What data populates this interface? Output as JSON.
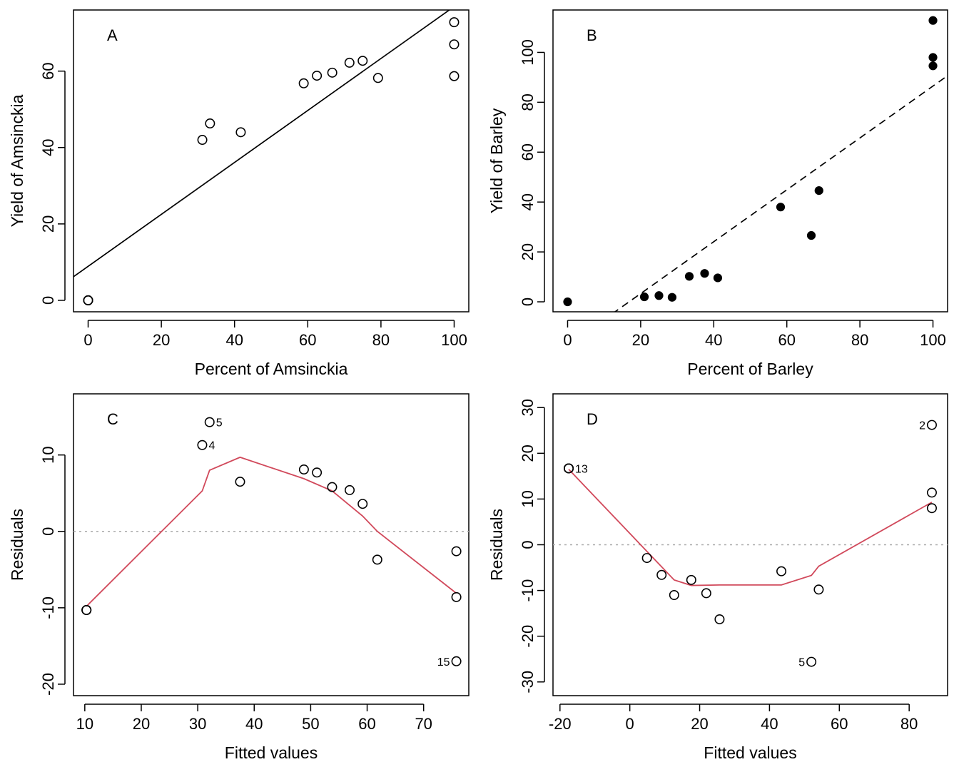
{
  "chart_data": [
    {
      "type": "scatter",
      "panel_label": "A",
      "title": "",
      "xlabel": "Percent of Amsinckia",
      "ylabel": "Yield of Amsinckia",
      "xlim": [
        -4,
        104
      ],
      "ylim": [
        -3,
        76
      ],
      "xticks": [
        0,
        20,
        40,
        60,
        80,
        100
      ],
      "yticks": [
        0,
        20,
        40,
        60
      ],
      "xtick_labels": [
        "0",
        "20",
        "40",
        "60",
        "80",
        "100"
      ],
      "ytick_labels": [
        "0",
        "20",
        "40",
        "60"
      ],
      "grid": false,
      "points": {
        "marker": "open-circle",
        "x": [
          0,
          0,
          0,
          31.2,
          33.3,
          41.7,
          58.9,
          62.5,
          66.7,
          71.4,
          75,
          79.2,
          100,
          100,
          100
        ],
        "y": [
          0,
          0,
          0,
          42,
          46.3,
          44,
          56.8,
          58.8,
          59.6,
          62.2,
          62.7,
          58.2,
          72.8,
          67,
          58.7
        ]
      },
      "lines": [
        {
          "style": "solid",
          "color": "#000000",
          "intercept": 8.9,
          "slope": 0.68
        }
      ]
    },
    {
      "type": "scatter",
      "panel_label": "B",
      "title": "",
      "xlabel": "Percent of Barley",
      "ylabel": "Yield of Barley",
      "xlim": [
        -4,
        104
      ],
      "ylim": [
        -4,
        117
      ],
      "xticks": [
        0,
        20,
        40,
        60,
        80,
        100
      ],
      "yticks": [
        0,
        20,
        40,
        60,
        80,
        100
      ],
      "xtick_labels": [
        "0",
        "20",
        "40",
        "60",
        "80",
        "100"
      ],
      "ytick_labels": [
        "0",
        "20",
        "40",
        "60",
        "80",
        "100"
      ],
      "grid": false,
      "points": {
        "marker": "filled-circle",
        "x": [
          0,
          21,
          25,
          28.6,
          33.3,
          37.5,
          41.1,
          58.3,
          66.7,
          68.8,
          100,
          100,
          100
        ],
        "y": [
          0,
          2,
          2.5,
          1.8,
          10.2,
          11.4,
          9.6,
          38,
          26.6,
          44.6,
          112.8,
          98,
          94.6
        ]
      },
      "lines": [
        {
          "style": "dashed",
          "color": "#000000",
          "intercept": -17.5,
          "slope": 1.04
        }
      ]
    },
    {
      "type": "scatter",
      "panel_label": "C",
      "title": "",
      "xlabel": "Fitted values",
      "ylabel": "Residuals",
      "xlim": [
        8,
        78
      ],
      "ylim": [
        -21.5,
        18
      ],
      "xticks": [
        10,
        20,
        30,
        40,
        50,
        60,
        70
      ],
      "yticks": [
        -20,
        -10,
        0,
        10
      ],
      "xtick_labels": [
        "10",
        "20",
        "30",
        "40",
        "50",
        "60",
        "70"
      ],
      "ytick_labels": [
        "-20",
        "-10",
        "0",
        "10"
      ],
      "grid": false,
      "reference_line": {
        "y": 0,
        "style": "dotted",
        "color": "#aaaaaa"
      },
      "points": {
        "marker": "open-circle",
        "x": [
          10.3,
          10.3,
          10.3,
          30.8,
          32.1,
          37.5,
          48.8,
          51.1,
          53.8,
          56.9,
          59.2,
          61.8,
          75.8,
          75.8,
          75.8
        ],
        "y": [
          -10.3,
          -10.3,
          -10.3,
          11.3,
          14.3,
          6.5,
          8.1,
          7.7,
          5.8,
          5.4,
          3.6,
          -3.7,
          -2.6,
          -8.6,
          -17
        ]
      },
      "labels": [
        {
          "text": "5",
          "x": 32.1,
          "y": 14.3,
          "side": "right"
        },
        {
          "text": "4",
          "x": 30.8,
          "y": 11.3,
          "side": "right"
        },
        {
          "text": "15",
          "x": 75.8,
          "y": -17,
          "side": "left"
        }
      ],
      "smooth": {
        "color": "#d1495b",
        "x": [
          10.3,
          30.8,
          32.1,
          37.5,
          48.8,
          53.8,
          59.2,
          61.8,
          75.8
        ],
        "y": [
          -9.8,
          5.3,
          8.0,
          9.7,
          6.9,
          5.3,
          2.0,
          0,
          -8.1
        ]
      }
    },
    {
      "type": "scatter",
      "panel_label": "D",
      "title": "",
      "xlabel": "Fitted values",
      "ylabel": "Residuals",
      "xlim": [
        -22,
        91
      ],
      "ylim": [
        -33,
        33
      ],
      "xticks": [
        -20,
        0,
        20,
        40,
        60,
        80
      ],
      "yticks": [
        -30,
        -20,
        -10,
        0,
        10,
        20,
        30
      ],
      "xtick_labels": [
        "-20",
        "0",
        "20",
        "40",
        "60",
        "80"
      ],
      "ytick_labels": [
        "-30",
        "-20",
        "-10",
        "0",
        "10",
        "20",
        "30"
      ],
      "grid": false,
      "reference_line": {
        "y": 0,
        "style": "dotted",
        "color": "#aaaaaa"
      },
      "points": {
        "marker": "open-circle",
        "x": [
          -17.5,
          -17.5,
          -17.5,
          4.9,
          9.1,
          12.7,
          17.6,
          21.9,
          25.7,
          43.4,
          52.0,
          54.1,
          86.5,
          86.5,
          86.5
        ],
        "y": [
          16.7,
          16.7,
          16.7,
          -2.9,
          -6.6,
          -11,
          -7.7,
          -10.6,
          -16.3,
          -5.8,
          -25.6,
          -9.8,
          26.2,
          11.4,
          8.0
        ]
      },
      "labels": [
        {
          "text": "13",
          "x": -17.5,
          "y": 16.7,
          "side": "right"
        },
        {
          "text": "2",
          "x": 86.5,
          "y": 26.2,
          "side": "left"
        },
        {
          "text": "5",
          "x": 52.0,
          "y": -25.6,
          "side": "left"
        }
      ],
      "smooth": {
        "color": "#d1495b",
        "x": [
          -17.5,
          12.7,
          17.6,
          25.7,
          43.4,
          52.0,
          54.1,
          86.5
        ],
        "y": [
          16.5,
          -7.7,
          -8.9,
          -8.8,
          -8.8,
          -6.7,
          -4.7,
          9.3
        ]
      }
    }
  ]
}
